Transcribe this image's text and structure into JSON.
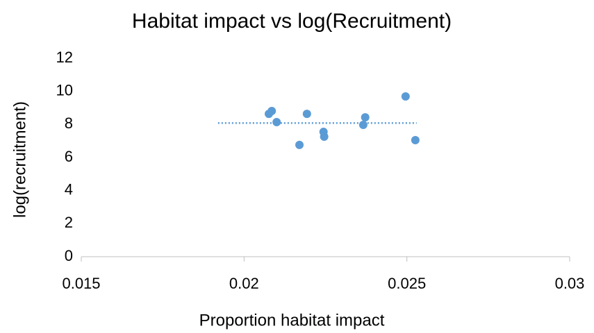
{
  "chart_data": {
    "type": "scatter",
    "title": "Habitat impact vs log(Recruitment)",
    "x_label": "Proportion habitat impact",
    "y_label": "log(recruitment)",
    "series": [
      {
        "color": "#5b9bd5",
        "x": [
          0.02076,
          0.02085,
          0.021,
          0.0217,
          0.02193,
          0.02244,
          0.02246,
          0.02366,
          0.02372,
          0.02496,
          0.02526
        ],
        "values": [
          8.64,
          8.81,
          8.14,
          6.76,
          8.64,
          7.55,
          7.26,
          7.97,
          8.43,
          9.69,
          7.05
        ]
      }
    ],
    "trendline": {
      "color": "#5b9bd5",
      "x": [
        0.0192,
        0.0253
      ],
      "values": [
        8.08,
        8.08
      ]
    },
    "xlim": [
      0.015,
      0.03
    ],
    "xticks": [
      0.015,
      0.02,
      0.025,
      0.03
    ],
    "ylim": [
      0,
      12
    ],
    "yticks": [
      0,
      2,
      4,
      6,
      8,
      10,
      12
    ]
  }
}
